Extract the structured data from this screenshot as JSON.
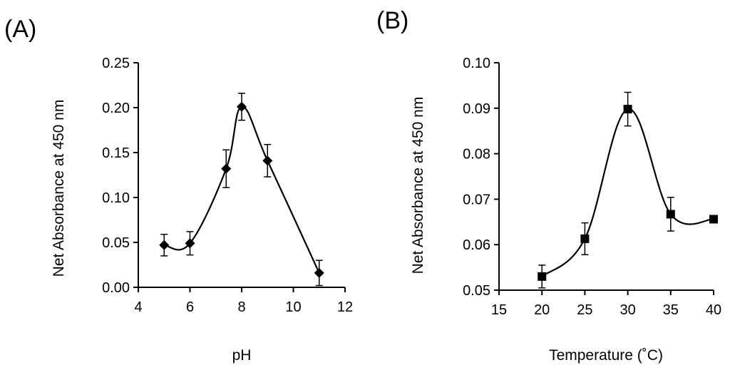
{
  "figure": {
    "panels": [
      "(A)",
      "(B)"
    ]
  },
  "chart_data": [
    {
      "type": "line",
      "panel_label": "(A)",
      "marker": "diamond",
      "xlabel": "pH",
      "ylabel": "Net Absorbance at 450 nm",
      "xlim": [
        4,
        12
      ],
      "ylim": [
        0,
        0.25
      ],
      "xticks": [
        4,
        6,
        8,
        10,
        12
      ],
      "yticks": [
        0.0,
        0.05,
        0.1,
        0.15,
        0.2,
        0.25
      ],
      "ytick_labels": [
        "0.00",
        "0.05",
        "0.10",
        "0.15",
        "0.20",
        "0.25"
      ],
      "xtick_labels": [
        "4",
        "6",
        "8",
        "10",
        "12"
      ],
      "grid": false,
      "series": [
        {
          "name": "pH",
          "x": [
            5,
            6,
            7.4,
            8,
            9,
            11
          ],
          "y": [
            0.047,
            0.049,
            0.132,
            0.201,
            0.141,
            0.016
          ],
          "err": [
            0.012,
            0.013,
            0.021,
            0.015,
            0.018,
            0.014
          ]
        }
      ]
    },
    {
      "type": "line",
      "panel_label": "(B)",
      "marker": "square",
      "xlabel": "Temperature (˚C)",
      "ylabel": "Net Absorbance at 450 nm",
      "xlim": [
        15,
        40
      ],
      "ylim": [
        0.05,
        0.1
      ],
      "xticks": [
        15,
        20,
        25,
        30,
        35,
        40
      ],
      "yticks": [
        0.05,
        0.06,
        0.07,
        0.08,
        0.09,
        0.1
      ],
      "ytick_labels": [
        "0.05",
        "0.06",
        "0.07",
        "0.08",
        "0.09",
        "0.10"
      ],
      "xtick_labels": [
        "15",
        "20",
        "25",
        "30",
        "35",
        "40"
      ],
      "grid": false,
      "series": [
        {
          "name": "Temperature",
          "x": [
            20,
            25,
            30,
            35,
            40
          ],
          "y": [
            0.053,
            0.0613,
            0.0898,
            0.0667,
            0.0656
          ],
          "err": [
            0.0025,
            0.0035,
            0.0037,
            0.0037,
            0.0008
          ]
        }
      ]
    }
  ]
}
